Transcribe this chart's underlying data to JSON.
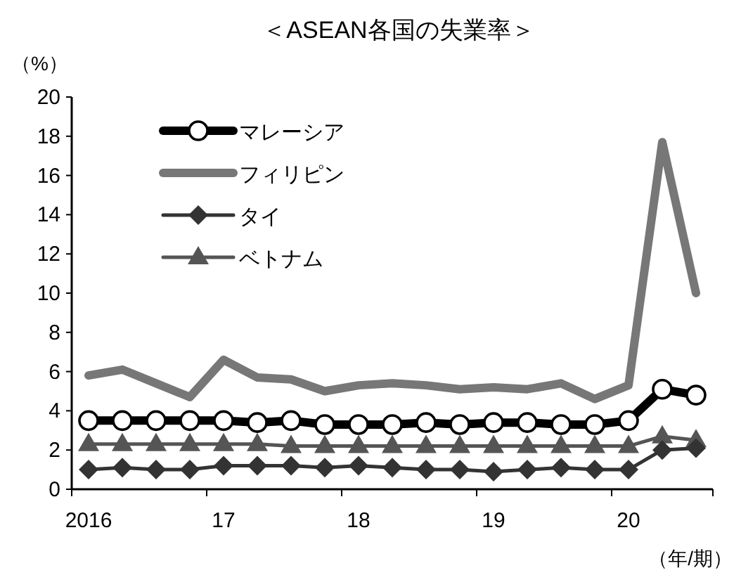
{
  "chart_data": {
    "type": "line",
    "title": "＜ASEAN各国の失業率＞",
    "ylabel": "（%）",
    "xlabel": "（年/期）",
    "categories": [
      "2016",
      null,
      null,
      null,
      "17",
      null,
      null,
      null,
      "18",
      null,
      null,
      null,
      "19",
      null,
      null,
      null,
      "20",
      null,
      null
    ],
    "ylim": [
      0,
      20
    ],
    "yticks": [
      0,
      2,
      4,
      6,
      8,
      10,
      12,
      14,
      16,
      18,
      20
    ],
    "grid": false,
    "legend": "top left",
    "series": [
      {
        "name": "マレーシア",
        "color": "#000000",
        "marker": "circle",
        "values": [
          3.5,
          3.5,
          3.5,
          3.5,
          3.5,
          3.4,
          3.5,
          3.3,
          3.3,
          3.3,
          3.4,
          3.3,
          3.4,
          3.4,
          3.3,
          3.3,
          3.5,
          5.1,
          4.8
        ]
      },
      {
        "name": "フィリピン",
        "color": "#777777",
        "marker": "none",
        "values": [
          5.8,
          6.1,
          5.4,
          4.7,
          6.6,
          5.7,
          5.6,
          5.0,
          5.3,
          5.4,
          5.3,
          5.1,
          5.2,
          5.1,
          5.4,
          4.6,
          5.3,
          17.7,
          10.0
        ]
      },
      {
        "name": "タイ",
        "color": "#333333",
        "marker": "diamond",
        "values": [
          1.0,
          1.1,
          1.0,
          1.0,
          1.2,
          1.2,
          1.2,
          1.1,
          1.2,
          1.1,
          1.0,
          1.0,
          0.9,
          1.0,
          1.1,
          1.0,
          1.0,
          2.0,
          2.1
        ]
      },
      {
        "name": "ベトナム",
        "color": "#555555",
        "marker": "triangle",
        "values": [
          2.3,
          2.3,
          2.3,
          2.3,
          2.3,
          2.3,
          2.2,
          2.2,
          2.2,
          2.2,
          2.2,
          2.2,
          2.2,
          2.2,
          2.2,
          2.2,
          2.2,
          2.7,
          2.5
        ]
      }
    ]
  }
}
